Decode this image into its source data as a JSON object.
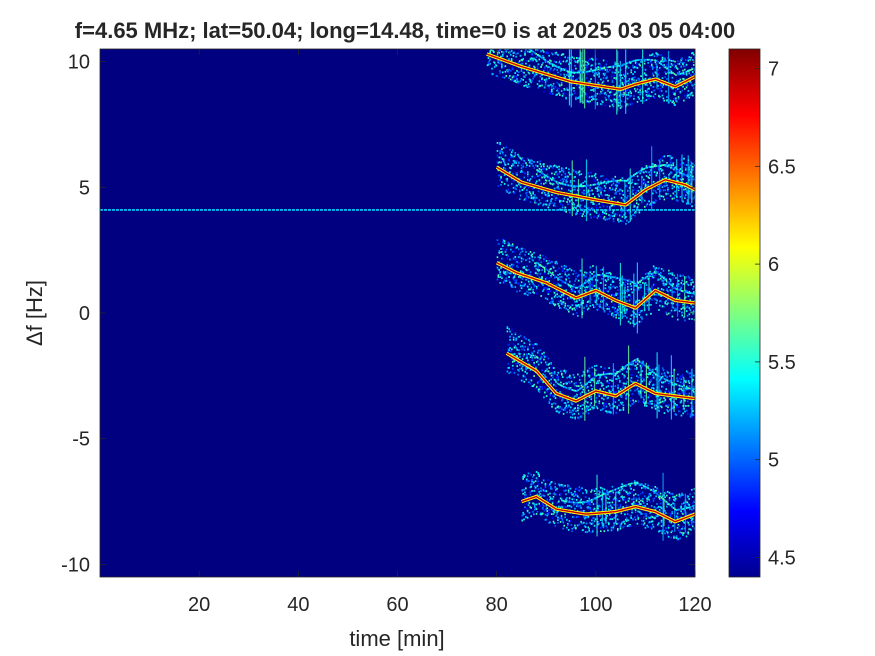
{
  "chart_data": {
    "type": "heatmap",
    "title": "f=4.65 MHz;  lat=50.04; long=14.48, time=0 is at 2025 03 05 04:00",
    "xlabel": "time [min]",
    "ylabel": "Δf [Hz]",
    "xlim": [
      0,
      120
    ],
    "ylim": [
      -10.5,
      10.5
    ],
    "x_ticks": [
      "20",
      "40",
      "60",
      "80",
      "100",
      "120"
    ],
    "y_ticks": [
      "-10",
      "-5",
      "0",
      "5",
      "10"
    ],
    "colorbar": {
      "colormap": "jet",
      "clim": [
        4.4,
        7.1
      ],
      "ticks": [
        "4.5",
        "5",
        "5.5",
        "6",
        "6.5",
        "7"
      ]
    },
    "background_value": 4.4,
    "horizontal_line": {
      "df": 4.1,
      "x_range": [
        0,
        120
      ],
      "value": 5.3
    },
    "traces": [
      {
        "name": "",
        "points": [
          [
            78,
            10.3
          ],
          [
            85,
            9.8
          ],
          [
            95,
            9.2
          ],
          [
            105,
            8.9
          ],
          [
            108,
            9.1
          ],
          [
            112,
            9.3
          ],
          [
            116,
            9.0
          ],
          [
            120,
            9.4
          ]
        ]
      },
      {
        "name": "",
        "points": [
          [
            80,
            5.8
          ],
          [
            85,
            5.2
          ],
          [
            92,
            4.8
          ],
          [
            100,
            4.5
          ],
          [
            106,
            4.3
          ],
          [
            110,
            4.9
          ],
          [
            114,
            5.3
          ],
          [
            118,
            5.1
          ],
          [
            120,
            4.9
          ]
        ]
      },
      {
        "name": "",
        "points": [
          [
            80,
            2.0
          ],
          [
            84,
            1.6
          ],
          [
            90,
            1.2
          ],
          [
            96,
            0.6
          ],
          [
            100,
            0.9
          ],
          [
            104,
            0.5
          ],
          [
            108,
            0.2
          ],
          [
            112,
            0.9
          ],
          [
            116,
            0.5
          ],
          [
            120,
            0.4
          ]
        ]
      },
      {
        "name": "",
        "points": [
          [
            82,
            -1.6
          ],
          [
            88,
            -2.3
          ],
          [
            92,
            -3.2
          ],
          [
            96,
            -3.5
          ],
          [
            100,
            -3.1
          ],
          [
            104,
            -3.3
          ],
          [
            108,
            -2.8
          ],
          [
            112,
            -3.2
          ],
          [
            116,
            -3.3
          ],
          [
            120,
            -3.4
          ]
        ]
      },
      {
        "name": "",
        "points": [
          [
            85,
            -7.5
          ],
          [
            88,
            -7.3
          ],
          [
            92,
            -7.8
          ],
          [
            98,
            -8.0
          ],
          [
            104,
            -7.9
          ],
          [
            108,
            -7.7
          ],
          [
            112,
            -7.9
          ],
          [
            116,
            -8.3
          ],
          [
            120,
            -8.0
          ]
        ]
      }
    ]
  }
}
